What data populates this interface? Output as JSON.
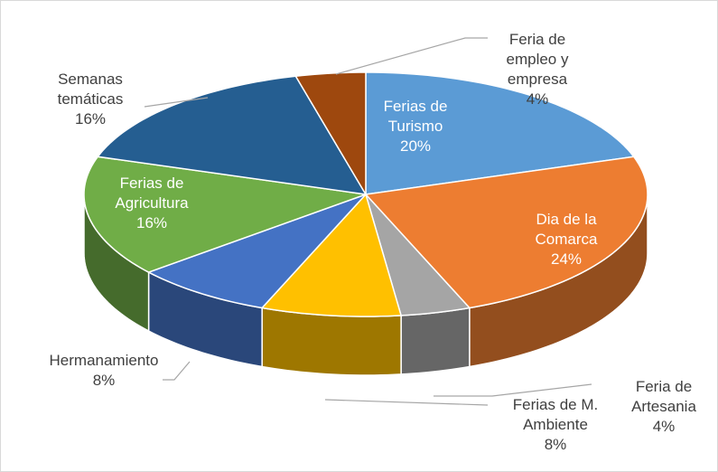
{
  "chart_data": {
    "type": "pie3d",
    "categories": [
      "Ferias de Turismo",
      "Dia de la Comarca",
      "Feria de Artesania",
      "Ferias de M. Ambiente",
      "Hermanamiento",
      "Ferias de Agricultura",
      "Semanas temáticas",
      "Feria de empleo y empresa"
    ],
    "values": [
      20,
      24,
      4,
      8,
      8,
      16,
      16,
      4
    ],
    "value_labels": [
      "20%",
      "24%",
      "4%",
      "8%",
      "8%",
      "16%",
      "16%",
      "4%"
    ],
    "colors": [
      "#5b9bd5",
      "#ed7d31",
      "#a5a5a5",
      "#ffc000",
      "#4472c4",
      "#70ad47",
      "#255e91",
      "#9e480e"
    ]
  }
}
